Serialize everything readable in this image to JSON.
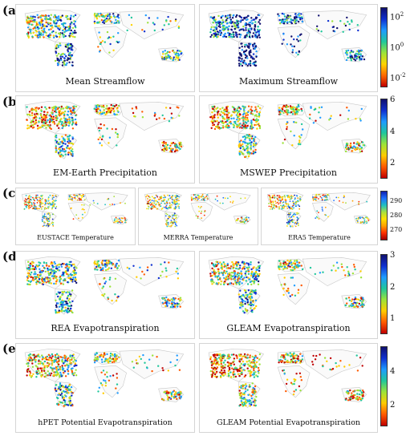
{
  "rows": [
    {
      "label": "(a)",
      "maps": [
        {
          "caption": "Mean Streamflow",
          "palette": "log",
          "bias": 0.55
        },
        {
          "caption": "Maximum Streamflow",
          "palette": "log",
          "bias": 0.78
        }
      ],
      "colorbar": {
        "scale": "log",
        "colors": [
          "#c00000",
          "#ff6a00",
          "#ffd400",
          "#9be33a",
          "#1fc79b",
          "#1e9bff",
          "#1030d0",
          "#10106e"
        ],
        "ticks": [
          {
            "text": "10",
            "exp": "2"
          },
          {
            "text": "10",
            "exp": "0"
          },
          {
            "text": "10",
            "exp": "-2"
          }
        ]
      }
    },
    {
      "label": "(b)",
      "maps": [
        {
          "caption": "EM-Earth Precipitation",
          "palette": "lin",
          "bias": 0.35
        },
        {
          "caption": "MSWEP Precipitation",
          "palette": "lin",
          "bias": 0.35
        }
      ],
      "colorbar": {
        "scale": "linear",
        "colors": [
          "#c00000",
          "#ff5a00",
          "#ffcc00",
          "#9be33a",
          "#1fc79b",
          "#1e9bff",
          "#1030d0",
          "#10106e"
        ],
        "ticks": [
          {
            "text": "6"
          },
          {
            "text": "4"
          },
          {
            "text": "2"
          }
        ]
      }
    },
    {
      "label": "(c)",
      "maps": [
        {
          "caption": "EUSTACE Temperature",
          "palette": "temp",
          "bias": 0.5
        },
        {
          "caption": "MERRA Temperature",
          "palette": "temp",
          "bias": 0.5
        },
        {
          "caption": "ERA5 Temperature",
          "palette": "temp",
          "bias": 0.5
        }
      ],
      "colorbar": {
        "scale": "linear",
        "colors": [
          "#a00000",
          "#ff3000",
          "#ffa000",
          "#ffe000",
          "#a8e040",
          "#20c0c0",
          "#2070ff",
          "#1020b0"
        ],
        "ticks": [
          {
            "text": "290"
          },
          {
            "text": "280"
          },
          {
            "text": "270"
          }
        ]
      }
    },
    {
      "label": "(d)",
      "maps": [
        {
          "caption": "REA Evapotranspiration",
          "palette": "lin",
          "bias": 0.5
        },
        {
          "caption": "GLEAM Evapotranspiration",
          "palette": "lin",
          "bias": 0.45
        }
      ],
      "colorbar": {
        "scale": "linear",
        "colors": [
          "#c00000",
          "#ff5a00",
          "#ffcc00",
          "#9be33a",
          "#1fc79b",
          "#1e9bff",
          "#1030d0",
          "#10106e"
        ],
        "ticks": [
          {
            "text": "3"
          },
          {
            "text": "2"
          },
          {
            "text": "1"
          }
        ]
      }
    },
    {
      "label": "(e)",
      "maps": [
        {
          "caption": "hPET Potential Evapotranspiration",
          "palette": "lin",
          "bias": 0.4
        },
        {
          "caption": "GLEAM Potential Evapotranspiration",
          "palette": "lin",
          "bias": 0.3
        }
      ],
      "colorbar": {
        "scale": "linear",
        "colors": [
          "#c00000",
          "#ff5a00",
          "#ffcc00",
          "#9be33a",
          "#1fc79b",
          "#1e9bff",
          "#1030d0",
          "#10106e"
        ],
        "ticks": [
          {
            "text": "4"
          },
          {
            "text": "2"
          }
        ]
      }
    }
  ]
}
